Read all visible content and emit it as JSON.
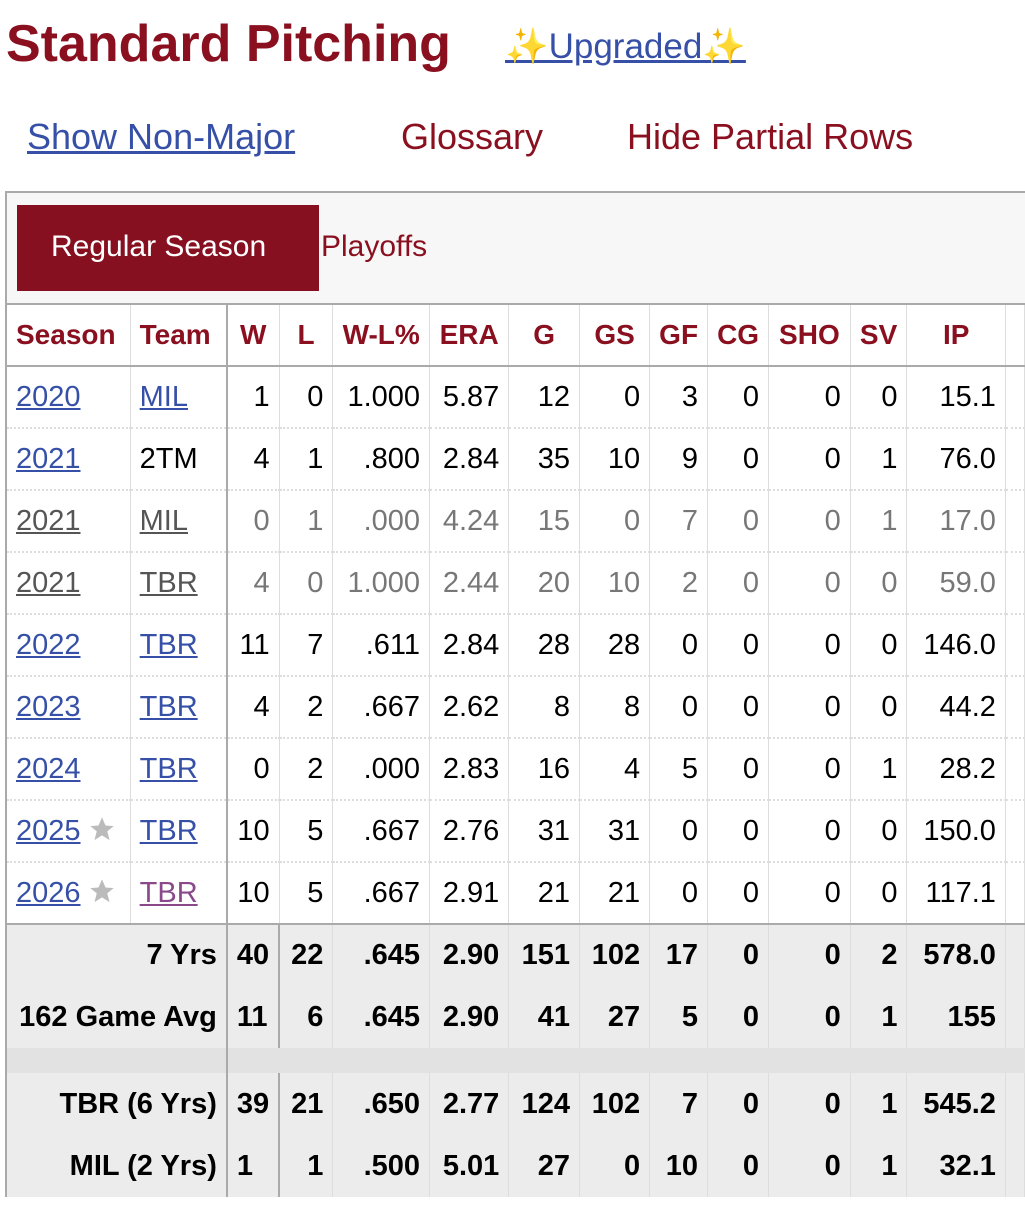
{
  "header": {
    "title": "Standard Pitching",
    "upgraded": "✨Upgraded✨"
  },
  "links": [
    "Show Non-Major",
    "Glossary",
    "Hide Partial Rows"
  ],
  "tabs": [
    "Regular Season",
    "Playoffs"
  ],
  "table": {
    "headers": [
      "Season",
      "Team",
      "W",
      "L",
      "W-L%",
      "ERA",
      "G",
      "GS",
      "GF",
      "CG",
      "SHO",
      "SV",
      "IP"
    ],
    "rows": [
      {
        "cells": [
          "2020",
          "MIL",
          "1",
          "0",
          "1.000",
          "5.87",
          "12",
          "0",
          "3",
          "0",
          "0",
          "0",
          "15.1"
        ]
      },
      {
        "cells": [
          "2021",
          "2TM",
          "4",
          "1",
          ".800",
          "2.84",
          "35",
          "10",
          "9",
          "0",
          "0",
          "1",
          "76.0"
        ],
        "team_link": false
      },
      {
        "cells": [
          "2021",
          "MIL",
          "0",
          "1",
          ".000",
          "4.24",
          "15",
          "0",
          "7",
          "0",
          "0",
          "1",
          "17.0"
        ],
        "partial": true
      },
      {
        "cells": [
          "2021",
          "TBR",
          "4",
          "0",
          "1.000",
          "2.44",
          "20",
          "10",
          "2",
          "0",
          "0",
          "0",
          "59.0"
        ],
        "partial": true
      },
      {
        "cells": [
          "2022",
          "TBR",
          "11",
          "7",
          ".611",
          "2.84",
          "28",
          "28",
          "0",
          "0",
          "0",
          "0",
          "146.0"
        ]
      },
      {
        "cells": [
          "2023",
          "TBR",
          "4",
          "2",
          ".667",
          "2.62",
          "8",
          "8",
          "0",
          "0",
          "0",
          "0",
          "44.2"
        ]
      },
      {
        "cells": [
          "2024",
          "TBR",
          "0",
          "2",
          ".000",
          "2.83",
          "16",
          "4",
          "5",
          "0",
          "0",
          "1",
          "28.2"
        ]
      },
      {
        "cells": [
          "2025",
          "TBR",
          "10",
          "5",
          ".667",
          "2.76",
          "31",
          "31",
          "0",
          "0",
          "0",
          "0",
          "150.0"
        ],
        "allstar": true
      },
      {
        "cells": [
          "2026",
          "TBR",
          "10",
          "5",
          ".667",
          "2.91",
          "21",
          "21",
          "0",
          "0",
          "0",
          "0",
          "117.1"
        ],
        "allstar": true,
        "visited": true
      }
    ],
    "summary": [
      {
        "label": "7 Yrs",
        "cells": [
          "40",
          "22",
          ".645",
          "2.90",
          "151",
          "102",
          "17",
          "0",
          "0",
          "2",
          "578.0"
        ]
      },
      {
        "label": "162 Game Avg",
        "cells": [
          "11",
          "6",
          ".645",
          "2.90",
          "41",
          "27",
          "5",
          "0",
          "0",
          "1",
          "155"
        ]
      },
      {
        "label": "TBR (6 Yrs)",
        "cells": [
          "39",
          "21",
          ".650",
          "2.77",
          "124",
          "102",
          "7",
          "0",
          "0",
          "1",
          "545.2"
        ],
        "gap_before": true
      },
      {
        "label": "MIL (2 Yrs)",
        "cells": [
          "1",
          "1",
          ".500",
          "5.01",
          "27",
          "0",
          "10",
          "0",
          "0",
          "1",
          "32.1"
        ]
      }
    ]
  }
}
